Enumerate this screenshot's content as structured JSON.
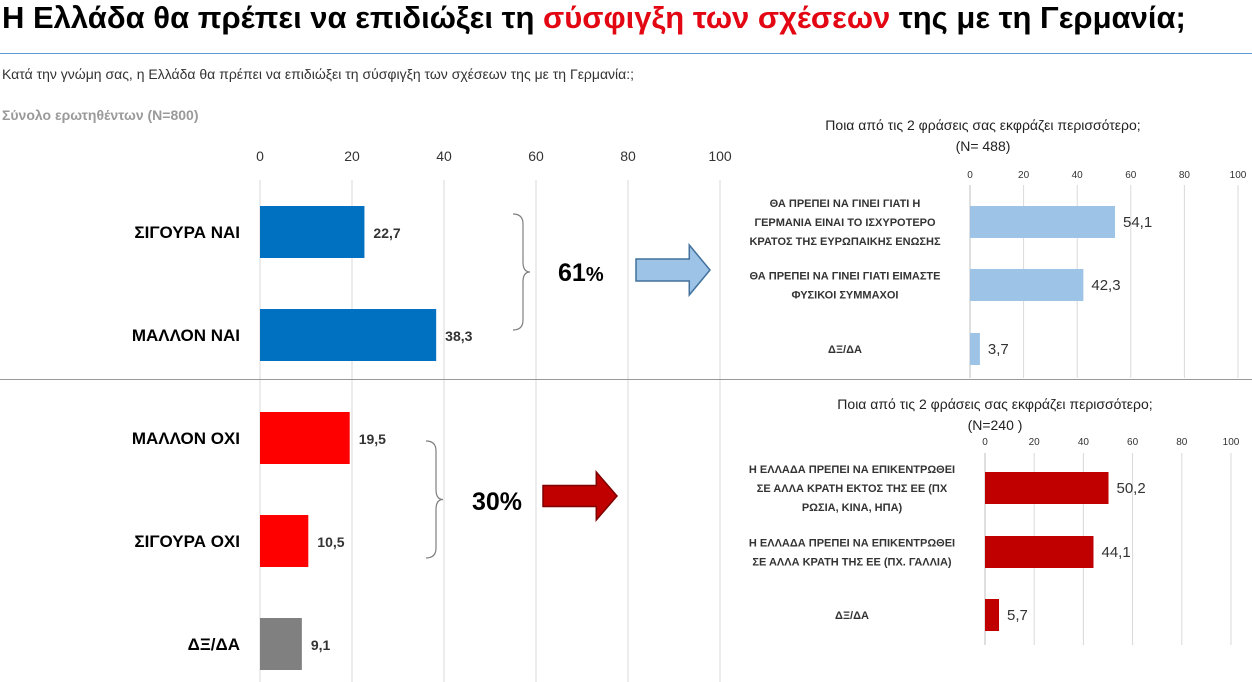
{
  "title": {
    "pre": "Η Ελλάδα θα πρέπει να επιδιώξει τη ",
    "highlight": "σύσφιγξη των σχέσεων",
    "post": " της με τη Γερμανία;",
    "highlight_color": "#e30613"
  },
  "subtitle": "Κατά την γνώμη σας, η Ελλάδα θα πρέπει να επιδιώξει τη σύσφιγξη των σχέσεων της με τη Γερμανία:;",
  "base_note": "Σύνολο ερωτηθέντων (N=800)",
  "colors": {
    "blue": "#0070c0",
    "red": "#ff0000",
    "grey": "#808080",
    "light_blue": "#9dc3e6",
    "dark_red": "#c00000"
  },
  "chart_data": [
    {
      "type": "bar",
      "orientation": "horizontal",
      "categories": [
        "ΣΙΓΟΥΡΑ ΝΑΙ",
        "ΜΑΛΛΟΝ ΝΑΙ",
        "ΜΑΛΛΟΝ ΟΧΙ",
        "ΣΙΓΟΥΡΑ ΟΧΙ",
        "ΔΞ/ΔΑ"
      ],
      "values": [
        22.7,
        38.3,
        19.5,
        10.5,
        9.1
      ],
      "value_labels": [
        "22,7",
        "38,3",
        "19,5",
        "10,5",
        "9,1"
      ],
      "colors": [
        "#0070c0",
        "#0070c0",
        "#ff0000",
        "#ff0000",
        "#808080"
      ],
      "xlim": [
        0,
        100
      ],
      "xticks": [
        "0",
        "20",
        "40",
        "60",
        "80",
        "100"
      ],
      "grid": true
    },
    {
      "type": "bar",
      "orientation": "horizontal",
      "title_lines": [
        "Ποια από τις 2 φράσεις σας εκφράζει περισσότερο;",
        "(N= 488)"
      ],
      "categories": [
        [
          "ΘΑ ΠΡΕΠΕΙ ΝΑ ΓΙΝΕΙ ΓΙΑΤΙ Η",
          "ΓΕΡΜΑΝΙΑ ΕΙΝΑΙ ΤΟ ΙΣΧΥΡΟΤΕΡΟ",
          "ΚΡΑΤΟΣ ΤΗΣ ΕΥΡΩΠΑΙΚΗΣ ΕΝΩΣΗΣ"
        ],
        [
          "ΘΑ ΠΡΕΠΕΙ ΝΑ ΓΙΝΕΙ ΓΙΑΤΙ ΕΙΜΑΣΤΕ",
          "ΦΥΣΙΚΟΙ ΣΥΜΜΑΧΟΙ"
        ],
        [
          "ΔΞ/ΔΑ"
        ]
      ],
      "values": [
        54.1,
        42.3,
        3.7
      ],
      "value_labels": [
        "54,1",
        "42,3",
        "3,7"
      ],
      "color": "#9dc3e6",
      "xlim": [
        0,
        100
      ],
      "xticks": [
        "0",
        "20",
        "40",
        "60",
        "80",
        "100"
      ],
      "grid": true
    },
    {
      "type": "bar",
      "orientation": "horizontal",
      "title_lines": [
        "Ποια από τις 2 φράσεις σας εκφράζει περισσότερο;",
        "(N=240 )"
      ],
      "categories": [
        [
          "Η ΕΛΛΑΔΑ ΠΡΕΠΕΙ ΝΑ ΕΠΙΚΕΝΤΡΩΘΕΙ",
          "ΣΕ ΑΛΛΑ ΚΡΑΤΗ ΕΚΤΟΣ ΤΗΣ ΕΕ (ΠΧ",
          "ΡΩΣΙΑ, ΚΙΝΑ, ΗΠΑ)"
        ],
        [
          "Η ΕΛΛΑΔΑ ΠΡΕΠΕΙ ΝΑ ΕΠΙΚΕΝΤΡΩΘΕΙ",
          "ΣΕ ΑΛΛΑ ΚΡΑΤΗ ΤΗΣ ΕΕ (ΠΧ. ΓΑΛΛΙΑ)"
        ],
        [
          "ΔΞ/ΔΑ"
        ]
      ],
      "values": [
        50.2,
        44.1,
        5.7
      ],
      "value_labels": [
        "50,2",
        "44,1",
        "5,7"
      ],
      "color": "#c00000",
      "xlim": [
        0,
        100
      ],
      "xticks": [
        "0",
        "20",
        "40",
        "60",
        "80",
        "100"
      ],
      "grid": true
    }
  ],
  "summary_yes": {
    "number": "61",
    "percent": "%"
  },
  "summary_no": {
    "number": "30%"
  }
}
